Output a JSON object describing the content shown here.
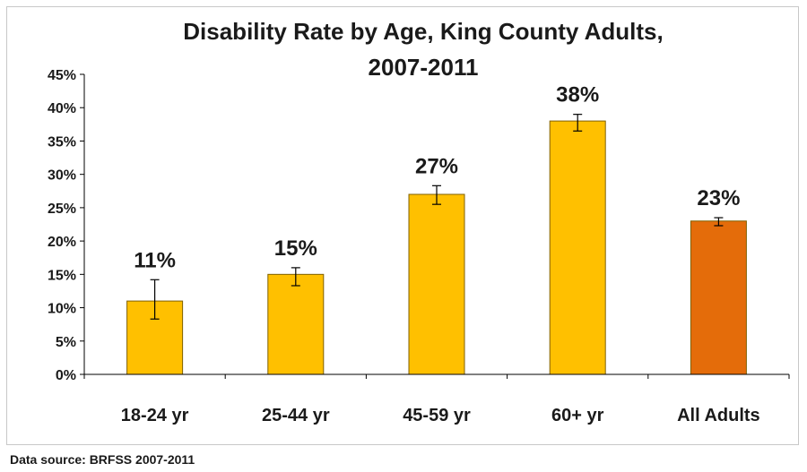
{
  "chart_data": {
    "type": "bar",
    "title_lines": [
      "Disability Rate by Age, King County Adults,",
      "2007-2011"
    ],
    "categories": [
      "18-24 yr",
      "25-44 yr",
      "45-59 yr",
      "60+ yr",
      "All Adults"
    ],
    "values": [
      11,
      15,
      27,
      38,
      23
    ],
    "error_low": [
      8.3,
      13.3,
      25.5,
      36.5,
      22.3
    ],
    "error_high": [
      14.2,
      16.0,
      28.3,
      39.0,
      23.5
    ],
    "data_labels": [
      "11%",
      "15%",
      "27%",
      "38%",
      "23%"
    ],
    "yticks": [
      "0%",
      "5%",
      "10%",
      "15%",
      "20%",
      "25%",
      "30%",
      "35%",
      "40%",
      "45%"
    ],
    "ylim": [
      0,
      45
    ],
    "ytick_step": 5,
    "grid": false,
    "colors": {
      "bar": "#FFC000",
      "bar_highlight": "#E46C0A",
      "bar_stroke": "#7F6000",
      "axis": "#000000"
    }
  },
  "footer": {
    "source": "Data source: BRFSS 2007-2011"
  }
}
